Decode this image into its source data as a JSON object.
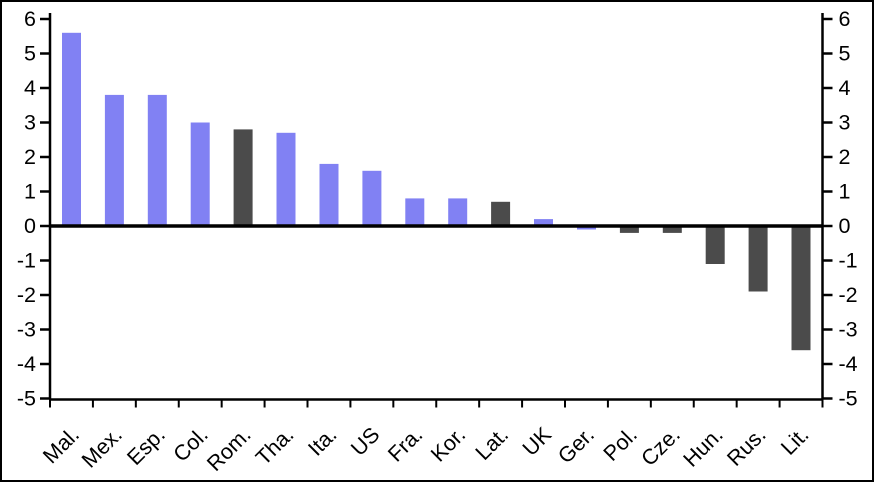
{
  "frame": {
    "background_color": "#ffffff",
    "border_color": "#000000"
  },
  "chart_data": {
    "type": "bar",
    "title": "",
    "xlabel": "",
    "ylabel": "",
    "categories": [
      "Mal.",
      "Mex.",
      "Esp.",
      "Col.",
      "Rom.",
      "Tha.",
      "Ita.",
      "US",
      "Fra.",
      "Kor.",
      "Lat.",
      "UK",
      "Ger.",
      "Pol.",
      "Cze.",
      "Hun.",
      "Rus.",
      "Lit."
    ],
    "values": [
      5.6,
      3.8,
      3.8,
      3.0,
      2.8,
      2.7,
      1.8,
      1.6,
      0.8,
      0.8,
      0.7,
      0.2,
      -0.1,
      -0.2,
      -0.2,
      -1.1,
      -1.9,
      -3.6
    ],
    "bar_color_keys": [
      "blue",
      "blue",
      "blue",
      "blue",
      "dark",
      "blue",
      "blue",
      "blue",
      "blue",
      "blue",
      "dark",
      "blue",
      "blue",
      "dark",
      "dark",
      "dark",
      "dark",
      "dark"
    ],
    "colors": {
      "blue": "#8181f3",
      "dark": "#4b4b4b",
      "axis": "#000000"
    },
    "ylim": [
      -5,
      6
    ],
    "ytick_step": 1,
    "yticks_left": [
      "6",
      "5",
      "4",
      "3",
      "2",
      "1",
      "0",
      "-1",
      "-2",
      "-3",
      "-4",
      "-5"
    ],
    "yticks_right": [
      "6",
      "5",
      "4",
      "3",
      "2",
      "1",
      "0",
      "-1",
      "-2",
      "-3",
      "-4",
      "-5"
    ],
    "x_label_rotation_deg": -45,
    "dual_y_axis": true,
    "zero_line": true,
    "grid": false,
    "legend": "none"
  }
}
